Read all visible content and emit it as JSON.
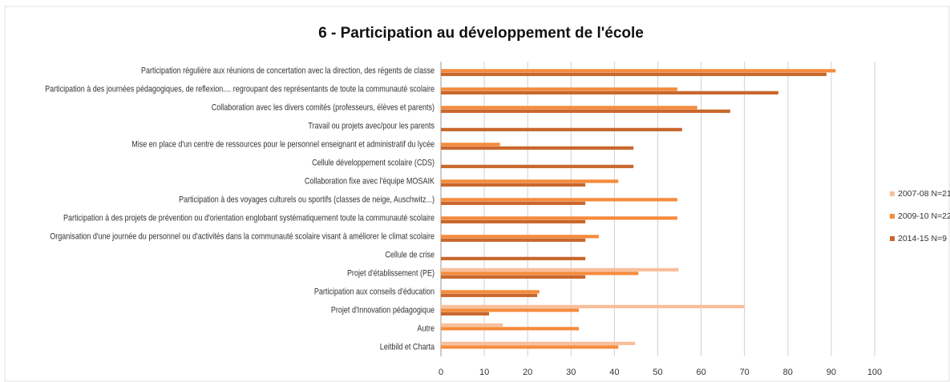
{
  "chart_data": {
    "type": "hbar",
    "title": "6 - Participation au développement de l'école",
    "categories": [
      "Participation régulière aux réunions de concertation avec la direction, des régents de classe",
      "Participation à des journées pédagogiques, de reflexion.... regroupant des représentants de toute la communauté scolaire",
      "Collaboration avec les divers comités (professeurs, élèves et parents)",
      "Travail ou projets avec/pour les parents",
      "Mise en place d'un centre de ressources pour le personnel enseignant et administratif du lycée",
      "Cellule développement scolaire (CDS)",
      "Collaboration fixe avec l'équipe MOSAIK",
      "Participation à des voyages culturels ou sportifs (classes de neige, Auschwitz...)",
      "Participation à des projets de prévention ou d'orientation englobant systématiquement toute la communauté scolaire",
      "Organisation d'une journée du personnel ou d'activités dans la communauté scolaire visant à améliorer le climat scolaire",
      "Cellule de crise",
      "Projet d'établissement (PE)",
      "Participation aux conseils d'éducation",
      "Projet d'Innovation pédagogique",
      "Autre",
      "Leitbild et Charta"
    ],
    "series": [
      {
        "name": "2007-08 N=21",
        "color": "#f7bf9c",
        "values": [
          0,
          0,
          0,
          0,
          0,
          0,
          0,
          0,
          0,
          0,
          0,
          54.8,
          0,
          70,
          14.3,
          44.8
        ]
      },
      {
        "name": "2009-10 N=22",
        "color": "#f58b3c",
        "values": [
          91,
          54.5,
          59.1,
          0,
          13.6,
          0,
          40.9,
          54.5,
          54.5,
          36.4,
          0,
          45.5,
          22.7,
          31.8,
          31.8,
          40.9
        ]
      },
      {
        "name": "2014-15 N=9",
        "color": "#c8672c",
        "values": [
          88.9,
          77.8,
          66.7,
          55.6,
          44.4,
          44.4,
          33.3,
          33.3,
          33.3,
          33.3,
          33.3,
          33.3,
          22.2,
          11.1,
          0,
          0
        ]
      }
    ],
    "xlim": [
      0,
      100
    ],
    "xticks": [
      0,
      10,
      20,
      30,
      40,
      50,
      60,
      70,
      80,
      90,
      100
    ],
    "grid": true,
    "legend": "right"
  }
}
